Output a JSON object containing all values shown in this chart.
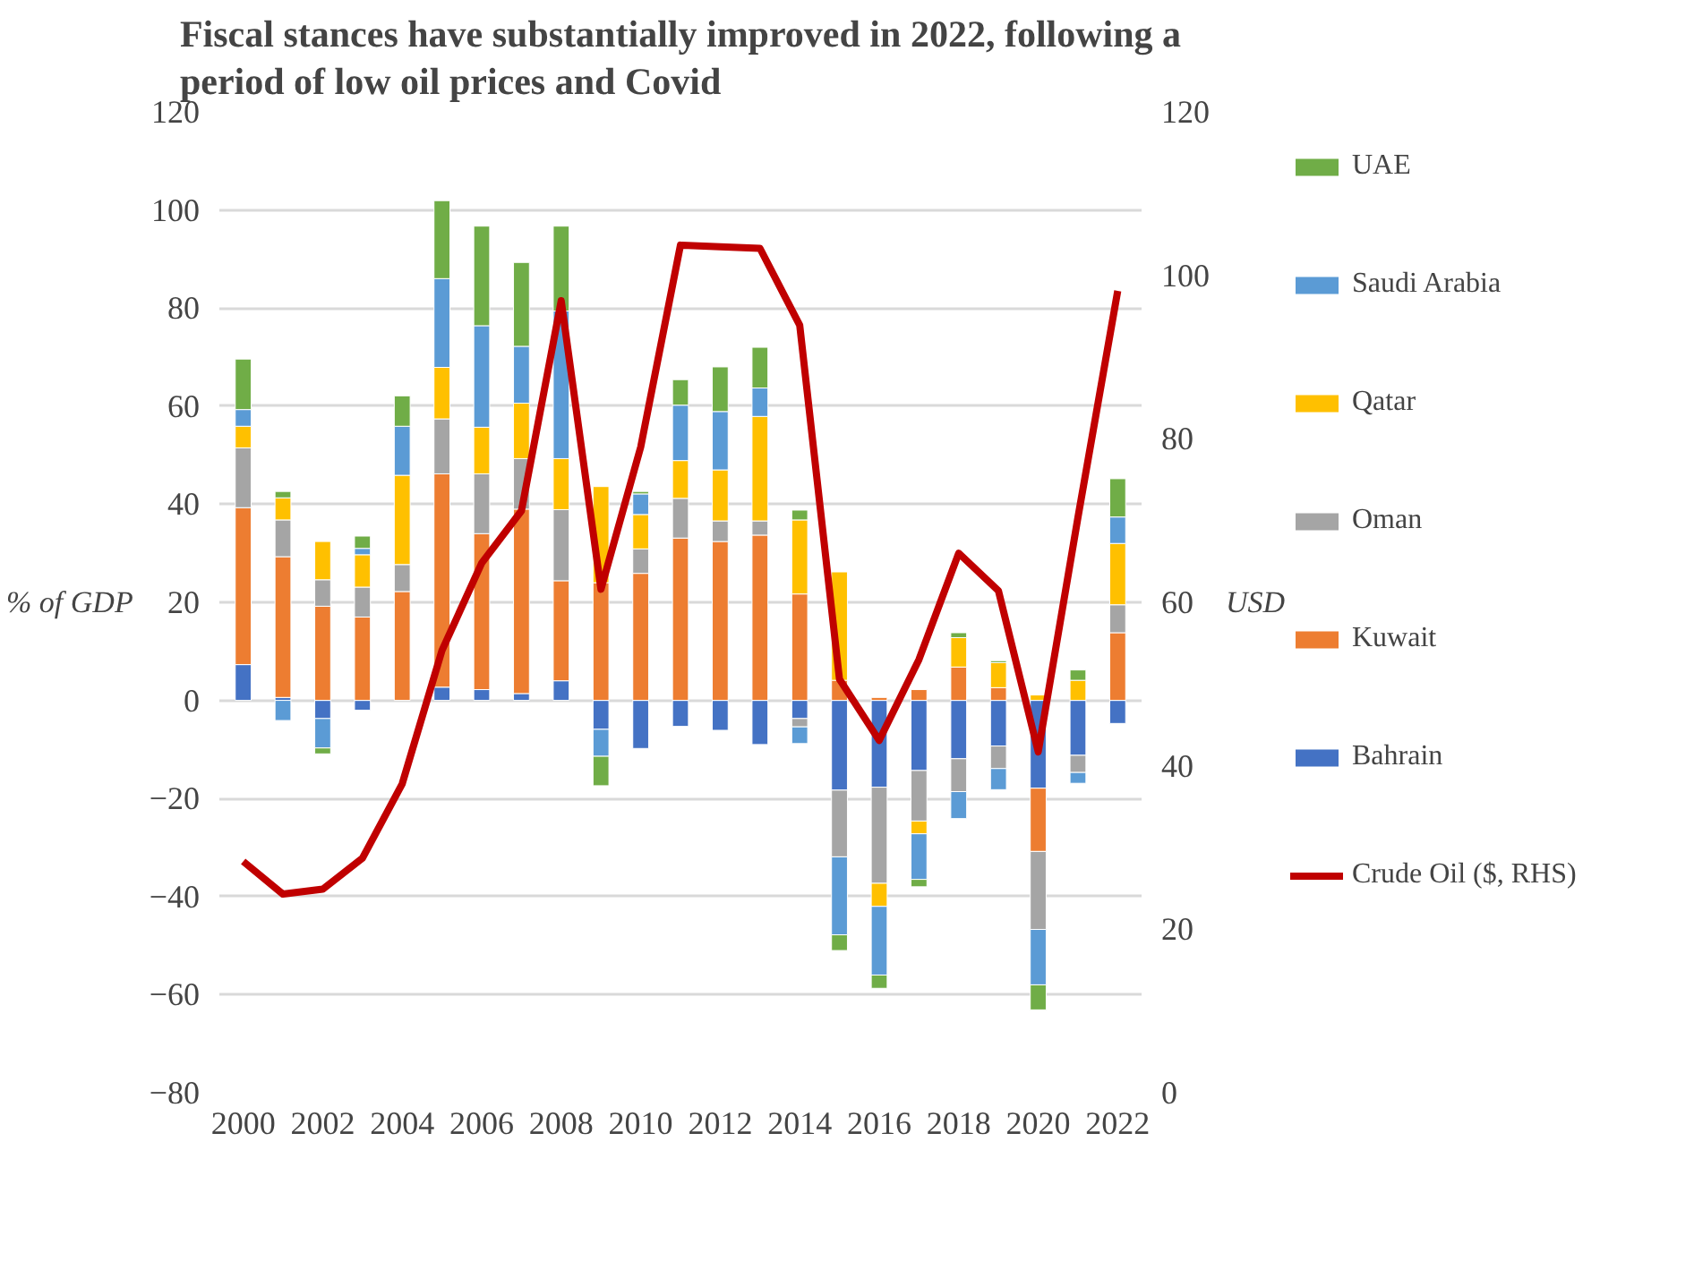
{
  "chart_data": {
    "type": "bar",
    "stacked": true,
    "title": "Fiscal stances have substantially improved in 2022, following a\nperiod of low oil prices and Covid",
    "ylabel": "% of GDP",
    "y2label": "USD",
    "categories": [
      "2000",
      null,
      "2002",
      null,
      "2004",
      null,
      "2006",
      null,
      "2008",
      null,
      "2010",
      null,
      "2012",
      null,
      "2014",
      null,
      "2016",
      null,
      "2018",
      null,
      "2020",
      null,
      "2022"
    ],
    "ylim": [
      -80,
      120
    ],
    "yticks": [
      -80,
      -60,
      -40,
      -20,
      0,
      20,
      40,
      60,
      80,
      100,
      120
    ],
    "y2lim": [
      0,
      120
    ],
    "y2ticks": [
      0,
      20,
      40,
      60,
      80,
      100,
      120
    ],
    "grid": "y",
    "legend": "right",
    "series": [
      {
        "name": "Bahrain",
        "color": "#4472c4",
        "values": [
          7.3,
          0.6,
          -3.7,
          -2.0,
          null,
          2.7,
          2.2,
          1.4,
          4.0,
          -5.9,
          -9.8,
          -5.3,
          -6.1,
          -9.0,
          -3.7,
          -18.3,
          -17.7,
          -14.3,
          -11.9,
          -9.3,
          -17.9,
          -11.2,
          -4.7
        ]
      },
      {
        "name": "Kuwait",
        "color": "#ed7d31",
        "values": [
          32.0,
          28.7,
          19.2,
          17.0,
          22.2,
          43.5,
          31.8,
          37.6,
          20.4,
          24.0,
          25.9,
          33.1,
          32.4,
          33.7,
          21.7,
          4.1,
          0.6,
          2.2,
          6.8,
          2.6,
          -12.9,
          null,
          13.8
        ]
      },
      {
        "name": "Oman",
        "color": "#a5a5a5",
        "values": [
          12.2,
          7.5,
          5.4,
          6.1,
          5.5,
          11.2,
          12.2,
          10.3,
          14.5,
          null,
          5.0,
          8.1,
          4.2,
          2.9,
          -1.7,
          -13.6,
          -19.6,
          -10.3,
          -6.7,
          -4.6,
          -15.9,
          -3.5,
          5.7
        ]
      },
      {
        "name": "Qatar",
        "color": "#ffc000",
        "values": [
          4.4,
          4.5,
          7.8,
          6.6,
          18.2,
          10.5,
          9.5,
          11.3,
          10.4,
          19.6,
          7.0,
          7.7,
          10.4,
          21.3,
          15.1,
          22.1,
          -4.7,
          -2.6,
          6.0,
          5.1,
          1.1,
          4.1,
          12.5
        ]
      },
      {
        "name": "Saudi Arabia",
        "color": "#5b9bd5",
        "values": [
          3.4,
          -4.1,
          -6.0,
          1.3,
          10.0,
          18.1,
          20.7,
          11.6,
          30.1,
          -5.5,
          4.2,
          11.3,
          11.9,
          5.8,
          -3.4,
          -15.9,
          -14.0,
          -9.3,
          -5.5,
          -4.3,
          -11.3,
          -2.2,
          5.4
        ]
      },
      {
        "name": "UAE",
        "color": "#70ad47",
        "values": [
          10.3,
          1.3,
          -1.2,
          2.5,
          6.2,
          15.9,
          20.3,
          17.1,
          17.3,
          -6.0,
          0.5,
          5.2,
          9.1,
          8.3,
          2.0,
          -3.2,
          -2.7,
          -1.5,
          1.0,
          0.4,
          -5.1,
          2.1,
          7.8
        ]
      },
      {
        "name": "Crude Oil ($, RHS)",
        "type": "line",
        "axis": "y2",
        "color": "#c00000",
        "values": [
          28.3,
          24.3,
          24.9,
          28.7,
          37.8,
          54.1,
          64.8,
          71.2,
          96.9,
          61.6,
          79.0,
          103.7,
          103.5,
          103.3,
          93.9,
          50.6,
          43.1,
          53.0,
          66.0,
          61.4,
          41.7,
          70.4,
          98.1
        ]
      }
    ]
  }
}
